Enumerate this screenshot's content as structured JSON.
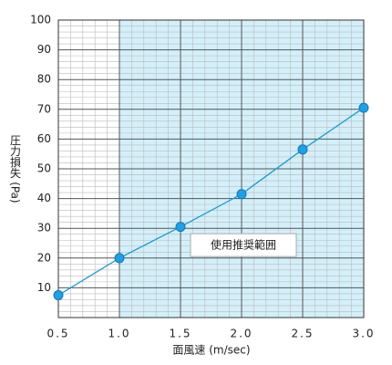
{
  "chart_data": {
    "type": "line",
    "x": [
      0.5,
      1.0,
      1.5,
      2.0,
      2.5,
      3.0
    ],
    "series": [
      {
        "values": [
          7.5,
          20,
          30.5,
          41.5,
          56.5,
          70.5
        ],
        "color": "#1a9bcf"
      }
    ],
    "xlabel": "面風速 (m/sec)",
    "ylabel": "圧力損失 (Pa)",
    "xlim": [
      0.5,
      3.0
    ],
    "ylim": [
      0,
      100
    ],
    "xticks": [
      0.5,
      {
        "value": 1,
        "label": "1.0"
      },
      1.5,
      {
        "value": 2,
        "label": "2.0"
      },
      2.5,
      {
        "value": 3,
        "label": "3.0"
      }
    ],
    "yticks": [
      10,
      20,
      30,
      40,
      50,
      60,
      70,
      80,
      90,
      100
    ],
    "grid": true,
    "minor_grid": true,
    "shaded_range": {
      "xlim": [
        1.0,
        3.0
      ],
      "label": "使用推奨範囲",
      "color": "#d3effa"
    }
  }
}
